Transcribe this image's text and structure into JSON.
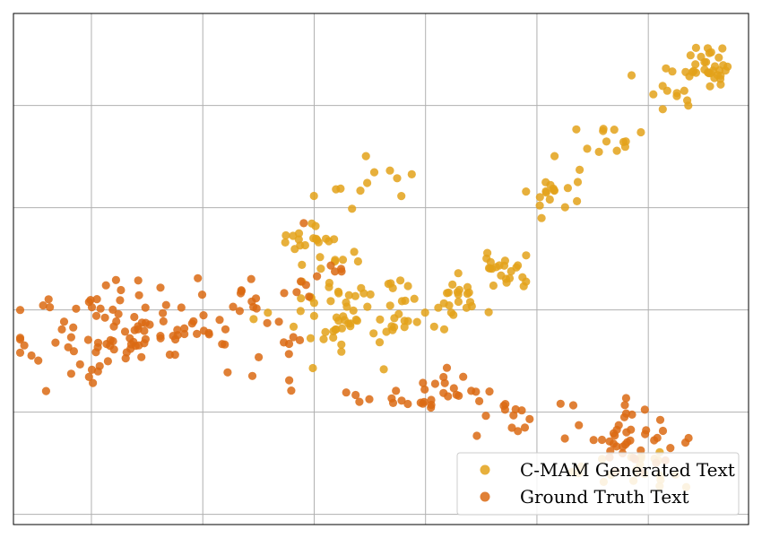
{
  "chart_data": {
    "type": "scatter",
    "grid": true,
    "legend_position": "bottom-right",
    "xlim": [
      -60,
      270
    ],
    "ylim": [
      -5,
      245
    ],
    "xticks": [
      -25,
      25,
      75,
      125,
      175,
      225
    ],
    "yticks": [
      0,
      50,
      100,
      150,
      200
    ],
    "series": [
      {
        "name": "C-MAM Generated Text",
        "color": "#e3a21a",
        "clusters": [
          {
            "n": 34,
            "cx": 250.0,
            "cy": 220.0,
            "sx": 8.0,
            "sy": 5.5
          },
          {
            "n": 10,
            "cx": 232.0,
            "cy": 205.0,
            "sx": 6.0,
            "sy": 5.0
          },
          {
            "n": 12,
            "cx": 208.0,
            "cy": 185.0,
            "sx": 7.0,
            "sy": 5.0
          },
          {
            "n": 18,
            "cx": 183.0,
            "cy": 155.0,
            "sx": 5.5,
            "sy": 8.0
          },
          {
            "n": 22,
            "cx": 161.0,
            "cy": 120.0,
            "sx": 7.0,
            "sy": 6.0
          },
          {
            "n": 18,
            "cx": 135.0,
            "cy": 108.0,
            "sx": 10.0,
            "sy": 5.0
          },
          {
            "n": 12,
            "cx": 116.0,
            "cy": 94.0,
            "sx": 10.0,
            "sy": 3.0
          },
          {
            "n": 60,
            "cx": 93.0,
            "cy": 100.0,
            "sx": 16.0,
            "sy": 11.0
          },
          {
            "n": 25,
            "cx": 77.0,
            "cy": 133.0,
            "sx": 10.0,
            "sy": 9.0
          },
          {
            "n": 12,
            "cx": 100.0,
            "cy": 159.0,
            "sx": 13.0,
            "sy": 6.0
          },
          {
            "n": 22,
            "cx": 223.0,
            "cy": 20.0,
            "sx": 13.0,
            "sy": 6.0
          }
        ]
      },
      {
        "name": "Ground Truth Text",
        "color": "#db6a13",
        "clusters": [
          {
            "n": 105,
            "cx": -7.0,
            "cy": 90.0,
            "sx": 26.0,
            "sy": 13.0
          },
          {
            "n": 12,
            "cx": 42.0,
            "cy": 99.0,
            "sx": 10.0,
            "sy": 9.0
          },
          {
            "n": 8,
            "cx": 63.0,
            "cy": 82.0,
            "sx": 3.0,
            "sy": 10.0
          },
          {
            "n": 10,
            "cx": 80.0,
            "cy": 120.0,
            "sx": 9.0,
            "sy": 8.0
          },
          {
            "n": 14,
            "cx": 110.0,
            "cy": 57.0,
            "sx": 14.0,
            "sy": 3.0
          },
          {
            "n": 16,
            "cx": 145.0,
            "cy": 62.0,
            "sx": 13.0,
            "sy": 5.0
          },
          {
            "n": 12,
            "cx": 162.0,
            "cy": 49.0,
            "sx": 9.0,
            "sy": 6.0
          },
          {
            "n": 45,
            "cx": 215.0,
            "cy": 37.0,
            "sx": 16.0,
            "sy": 9.0
          }
        ]
      }
    ]
  }
}
